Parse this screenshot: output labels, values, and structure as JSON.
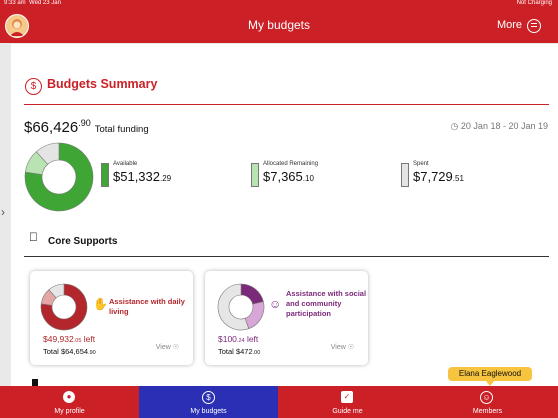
{
  "status": {
    "time": "9:33 am",
    "date": "Wed 23 Jan",
    "battery": "Not Charging"
  },
  "header": {
    "title": "My budgets",
    "more": "More"
  },
  "summary": {
    "title": "Budgets Summary",
    "total_amount": "$66,426",
    "total_cents": ".90",
    "total_label": "Total funding",
    "date_range": "20 Jan 18 - 20 Jan 19",
    "donut": [
      {
        "name": "Available",
        "value": 51332.29,
        "color": "#3fa535"
      },
      {
        "name": "Allocated Remaining",
        "value": 7365.1,
        "color": "#b9e3b2"
      },
      {
        "name": "Spent",
        "value": 7729.51,
        "color": "#e4e4e4"
      }
    ],
    "available": {
      "label": "Available",
      "amount": "$51,332",
      "cents": ".29",
      "color": "#3fa535"
    },
    "allocated": {
      "label": "Allocated Remaining",
      "amount": "$7,365",
      "cents": ".10",
      "color": "#b9e3b2"
    },
    "spent": {
      "label": "Spent",
      "amount": "$7,729",
      "cents": ".51",
      "color": "#e4e4e4"
    }
  },
  "core": {
    "title": "Core Supports",
    "cards": [
      {
        "name": "Assistance with daily living",
        "left_amount": "$49,932",
        "left_cents": ".05",
        "left_suffix": " left",
        "total_label": "Total ",
        "total_amount": "$64,654",
        "total_cents": ".90",
        "view": "View",
        "color": "#b3262c",
        "donut": [
          {
            "value": 49932.05,
            "color": "#b3262c"
          },
          {
            "value": 7361,
            "color": "#e7a6a6"
          },
          {
            "value": 7361.85,
            "color": "#e6e6e6"
          }
        ]
      },
      {
        "name": "Assistance with social and community participation",
        "left_amount": "$100",
        "left_cents": ".24",
        "left_suffix": " left",
        "total_label": "Total ",
        "total_amount": "$472",
        "total_cents": ".00",
        "view": "View",
        "color": "#7b2a7a",
        "donut": [
          {
            "value": 100.24,
            "color": "#7b2a7a"
          },
          {
            "value": 110,
            "color": "#d8a6d7"
          },
          {
            "value": 261.76,
            "color": "#e6e6e6"
          }
        ]
      }
    ]
  },
  "tabs": [
    {
      "label": "My profile",
      "icon": "person-icon"
    },
    {
      "label": "My budgets",
      "icon": "dollar-icon"
    },
    {
      "label": "Guide me",
      "icon": "guide-icon"
    },
    {
      "label": "Members",
      "icon": "members-icon"
    }
  ],
  "tooltip": "Elana Eaglewood"
}
